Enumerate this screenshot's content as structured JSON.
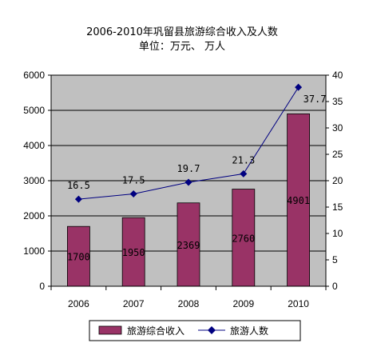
{
  "chart_data": {
    "type": "bar+line",
    "title": "2006-2010年巩留县旅游综合收入及人数",
    "subtitle": "单位：万元、  万人",
    "categories": [
      "2006",
      "2007",
      "2008",
      "2009",
      "2010"
    ],
    "series": [
      {
        "name": "旅游综合收入",
        "kind": "bar",
        "axis": "left",
        "color": "#993366",
        "values": [
          1700,
          1950,
          2369,
          2760,
          4901
        ],
        "labels": [
          "1700",
          "1950",
          "2369",
          "2760",
          "4901"
        ]
      },
      {
        "name": "旅游人数",
        "kind": "line",
        "axis": "right",
        "color": "#000080",
        "values": [
          16.5,
          17.5,
          19.7,
          21.3,
          37.7
        ],
        "labels": [
          "16.5",
          "17.5",
          "19.7",
          "21.3",
          "37.7"
        ]
      }
    ],
    "y_left": {
      "min": 0,
      "max": 6000,
      "ticks": [
        "0",
        "1000",
        "2000",
        "3000",
        "4000",
        "5000",
        "6000"
      ]
    },
    "y_right": {
      "min": 0,
      "max": 40,
      "ticks": [
        "0",
        "5",
        "10",
        "15",
        "20",
        "25",
        "30",
        "35",
        "40"
      ]
    },
    "grid": true,
    "plot_background": "#c0c0c0",
    "legend_position": "bottom"
  }
}
